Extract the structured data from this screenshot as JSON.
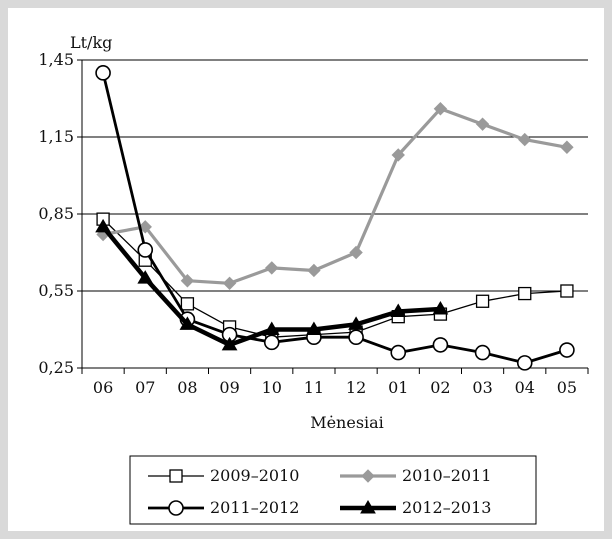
{
  "chart_data": {
    "type": "line",
    "ylabel": "Lt/kg",
    "xlabel": "Mėnesiai",
    "categories": [
      "06",
      "07",
      "08",
      "09",
      "10",
      "11",
      "12",
      "01",
      "02",
      "03",
      "04",
      "05"
    ],
    "yticks": [
      "1,45",
      "1,15",
      "0,85",
      "0,55",
      "0,25"
    ],
    "ylim": [
      0.25,
      1.45
    ],
    "grid": "horizontal",
    "legend_placement": "bottom",
    "series": [
      {
        "name": "2009–2010",
        "marker": "square-open",
        "color": "#000000",
        "values": [
          0.83,
          0.67,
          0.5,
          0.41,
          0.37,
          0.38,
          0.39,
          0.45,
          0.46,
          0.51,
          0.54,
          0.55
        ]
      },
      {
        "name": "2010–2011",
        "marker": "diamond",
        "color": "#9a9a9a",
        "values": [
          0.77,
          0.8,
          0.59,
          0.58,
          0.64,
          0.63,
          0.7,
          1.08,
          1.26,
          1.2,
          1.14,
          1.11
        ]
      },
      {
        "name": "2011–2012",
        "marker": "circle-open",
        "color": "#000000",
        "values": [
          1.4,
          0.71,
          0.44,
          0.38,
          0.35,
          0.37,
          0.37,
          0.31,
          0.34,
          0.31,
          0.27,
          0.32
        ]
      },
      {
        "name": "2012–2013",
        "marker": "triangle",
        "color": "#000000",
        "values": [
          0.8,
          0.6,
          0.42,
          0.34,
          0.4,
          0.4,
          0.42,
          0.47,
          0.48,
          null,
          null,
          null
        ]
      }
    ]
  }
}
